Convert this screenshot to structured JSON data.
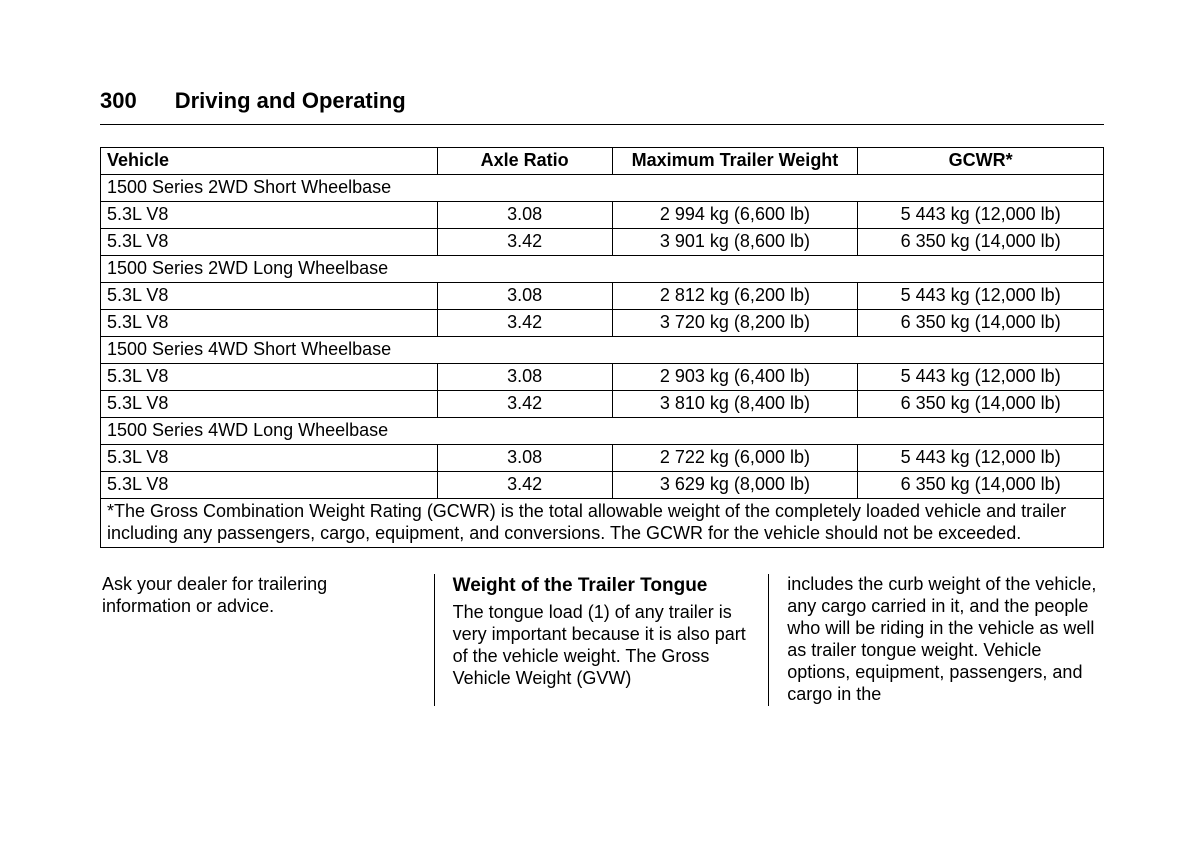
{
  "page_number": "300",
  "section_title": "Driving and Operating",
  "table": {
    "columns": [
      "Vehicle",
      "Axle Ratio",
      "Maximum Trailer Weight",
      "GCWR*"
    ],
    "groups": [
      {
        "label": "1500 Series 2WD Short Wheelbase",
        "rows": [
          {
            "engine": "5.3L V8",
            "axle": "3.08",
            "trailer": "2 994 kg (6,600 lb)",
            "gcwr": "5 443 kg (12,000 lb)"
          },
          {
            "engine": "5.3L V8",
            "axle": "3.42",
            "trailer": "3 901 kg (8,600 lb)",
            "gcwr": "6 350 kg (14,000 lb)"
          }
        ]
      },
      {
        "label": "1500 Series 2WD Long Wheelbase",
        "rows": [
          {
            "engine": "5.3L V8",
            "axle": "3.08",
            "trailer": "2 812 kg (6,200 lb)",
            "gcwr": "5 443 kg (12,000 lb)"
          },
          {
            "engine": "5.3L V8",
            "axle": "3.42",
            "trailer": "3 720 kg (8,200 lb)",
            "gcwr": "6 350 kg (14,000 lb)"
          }
        ]
      },
      {
        "label": "1500 Series 4WD Short Wheelbase",
        "rows": [
          {
            "engine": "5.3L V8",
            "axle": "3.08",
            "trailer": "2 903 kg (6,400 lb)",
            "gcwr": "5 443 kg (12,000 lb)"
          },
          {
            "engine": "5.3L V8",
            "axle": "3.42",
            "trailer": "3 810 kg (8,400 lb)",
            "gcwr": "6 350 kg (14,000 lb)"
          }
        ]
      },
      {
        "label": "1500 Series 4WD Long Wheelbase",
        "rows": [
          {
            "engine": "5.3L V8",
            "axle": "3.08",
            "trailer": "2 722 kg (6,000 lb)",
            "gcwr": "5 443 kg (12,000 lb)"
          },
          {
            "engine": "5.3L V8",
            "axle": "3.42",
            "trailer": "3 629 kg (8,000 lb)",
            "gcwr": "6 350 kg (14,000 lb)"
          }
        ]
      }
    ],
    "footnote": "*The Gross Combination Weight Rating (GCWR) is the total allowable weight of the completely loaded vehicle and trailer including any passengers, cargo, equipment, and conversions. The GCWR for the vehicle should not be exceeded."
  },
  "body": {
    "col1": "Ask your dealer for trailering information or advice.",
    "col2_heading": "Weight of the Trailer Tongue",
    "col2_text": "The tongue load (1) of any trailer is very important because it is also part of the vehicle weight. The Gross Vehicle Weight (GVW)",
    "col3": "includes the curb weight of the vehicle, any cargo carried in it, and the people who will be riding in the vehicle as well as trailer tongue weight. Vehicle options, equipment, passengers, and cargo in the"
  }
}
